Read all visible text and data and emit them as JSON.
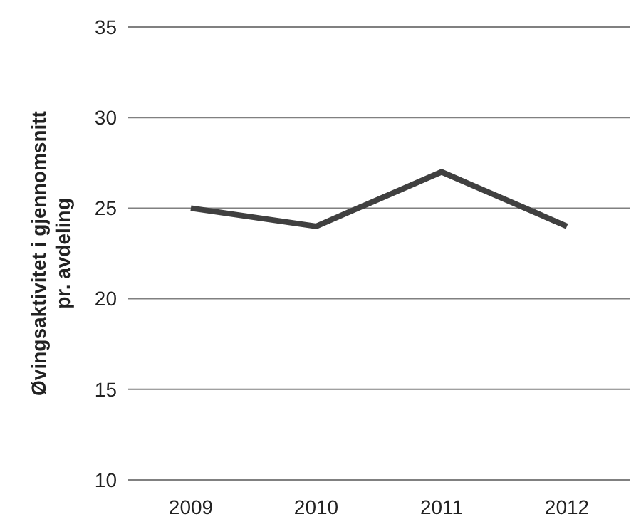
{
  "chart_data": {
    "type": "line",
    "ylabel": "Øvingsaktivitet i gjennomsnitt\npr. avdeling",
    "categories": [
      "2009",
      "2010",
      "2011",
      "2012"
    ],
    "series": [
      {
        "color": "#404040",
        "values": [
          25,
          24,
          27,
          24
        ]
      }
    ],
    "ylim": [
      10,
      35
    ],
    "yticks": [
      10,
      15,
      20,
      25,
      30,
      35
    ],
    "grid": "y",
    "marker": "none",
    "line_style": "solid"
  }
}
